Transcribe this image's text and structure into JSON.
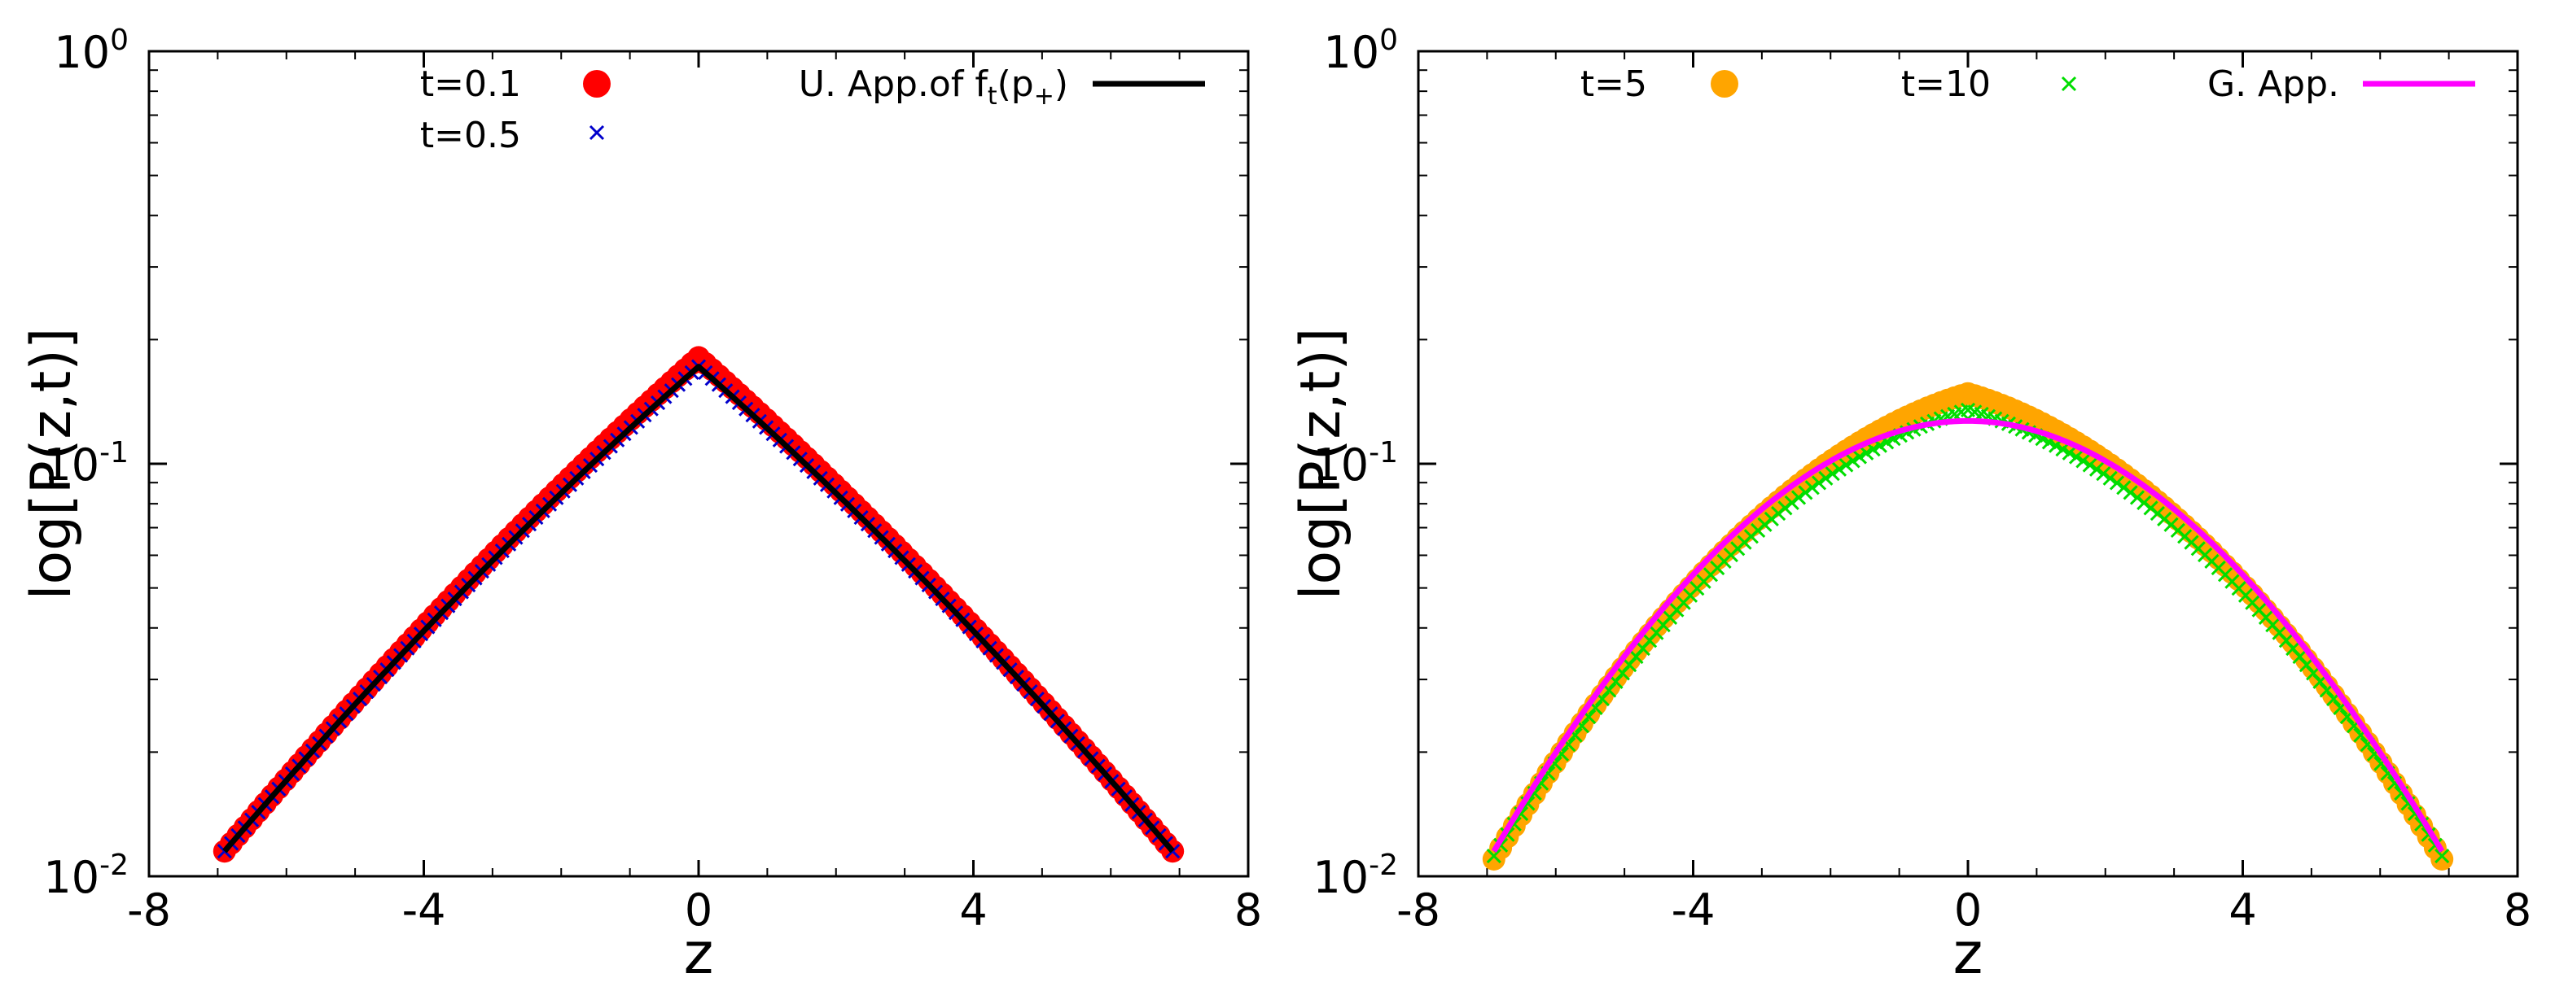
{
  "chart_data": [
    {
      "type": "line",
      "ylabel": "log[P(z,t)]",
      "xlabel": "z",
      "xlim": [
        -8,
        8
      ],
      "ylim": [
        0.01,
        1
      ],
      "yscale": "log",
      "xticks": [
        -8,
        -4,
        0,
        4,
        8
      ],
      "xtick_labels": [
        "-8",
        "-4",
        "0",
        "4",
        "8"
      ],
      "ytick_labels": [
        {
          "value": 1,
          "base": "10",
          "exp": "0"
        },
        {
          "value": 0.1,
          "base": "10",
          "exp": "-1"
        },
        {
          "value": 0.01,
          "base": "10",
          "exp": "-2"
        }
      ],
      "legend_position": "top",
      "series": [
        {
          "name": "t=0.1",
          "style": "filled-circle",
          "color": "#ff0000",
          "profile": "cusp",
          "peak": 0.181,
          "z_min": -6.9,
          "z_max": 6.9,
          "edge_value": 0.0115,
          "n_points": 140
        },
        {
          "name": "t=0.5",
          "style": "cross",
          "color": "#0000cc",
          "profile": "cusp",
          "peak": 0.172,
          "z_min": -6.9,
          "z_max": 6.9,
          "edge_value": 0.0115,
          "n_points": 140
        },
        {
          "name": "U. App.of f",
          "name_sub": "t",
          "name_paren": "(p",
          "name_sup": "+",
          "name_close": ")",
          "style": "line",
          "color": "#000000",
          "profile": "cusp",
          "peak": 0.172,
          "z_min": -6.9,
          "z_max": 6.9,
          "edge_value": 0.0115
        }
      ]
    },
    {
      "type": "line",
      "ylabel": "log[P(z,t)]",
      "xlabel": "z",
      "xlim": [
        -8,
        8
      ],
      "ylim": [
        0.01,
        1
      ],
      "yscale": "log",
      "xticks": [
        -8,
        -4,
        0,
        4,
        8
      ],
      "xtick_labels": [
        "-8",
        "-4",
        "0",
        "4",
        "8"
      ],
      "ytick_labels": [
        {
          "value": 1,
          "base": "10",
          "exp": "0"
        },
        {
          "value": 0.1,
          "base": "10",
          "exp": "-1"
        },
        {
          "value": 0.01,
          "base": "10",
          "exp": "-2"
        }
      ],
      "legend_position": "top",
      "series": [
        {
          "name": "t=5",
          "style": "filled-circle",
          "color": "#ffa500",
          "profile": "smooth",
          "peak": 0.148,
          "z_min": -6.9,
          "z_max": 6.9,
          "edge_value": 0.011,
          "n_points": 140
        },
        {
          "name": "t=10",
          "style": "cross",
          "color": "#00dd00",
          "profile": "smooth",
          "peak": 0.135,
          "z_min": -6.9,
          "z_max": 6.9,
          "edge_value": 0.0112,
          "n_points": 140
        },
        {
          "name": "G. App.",
          "style": "line",
          "color": "#ff00ff",
          "profile": "gauss",
          "peak": 0.127,
          "z_min": -6.9,
          "z_max": 6.9,
          "edge_value": 0.0115
        }
      ]
    }
  ]
}
